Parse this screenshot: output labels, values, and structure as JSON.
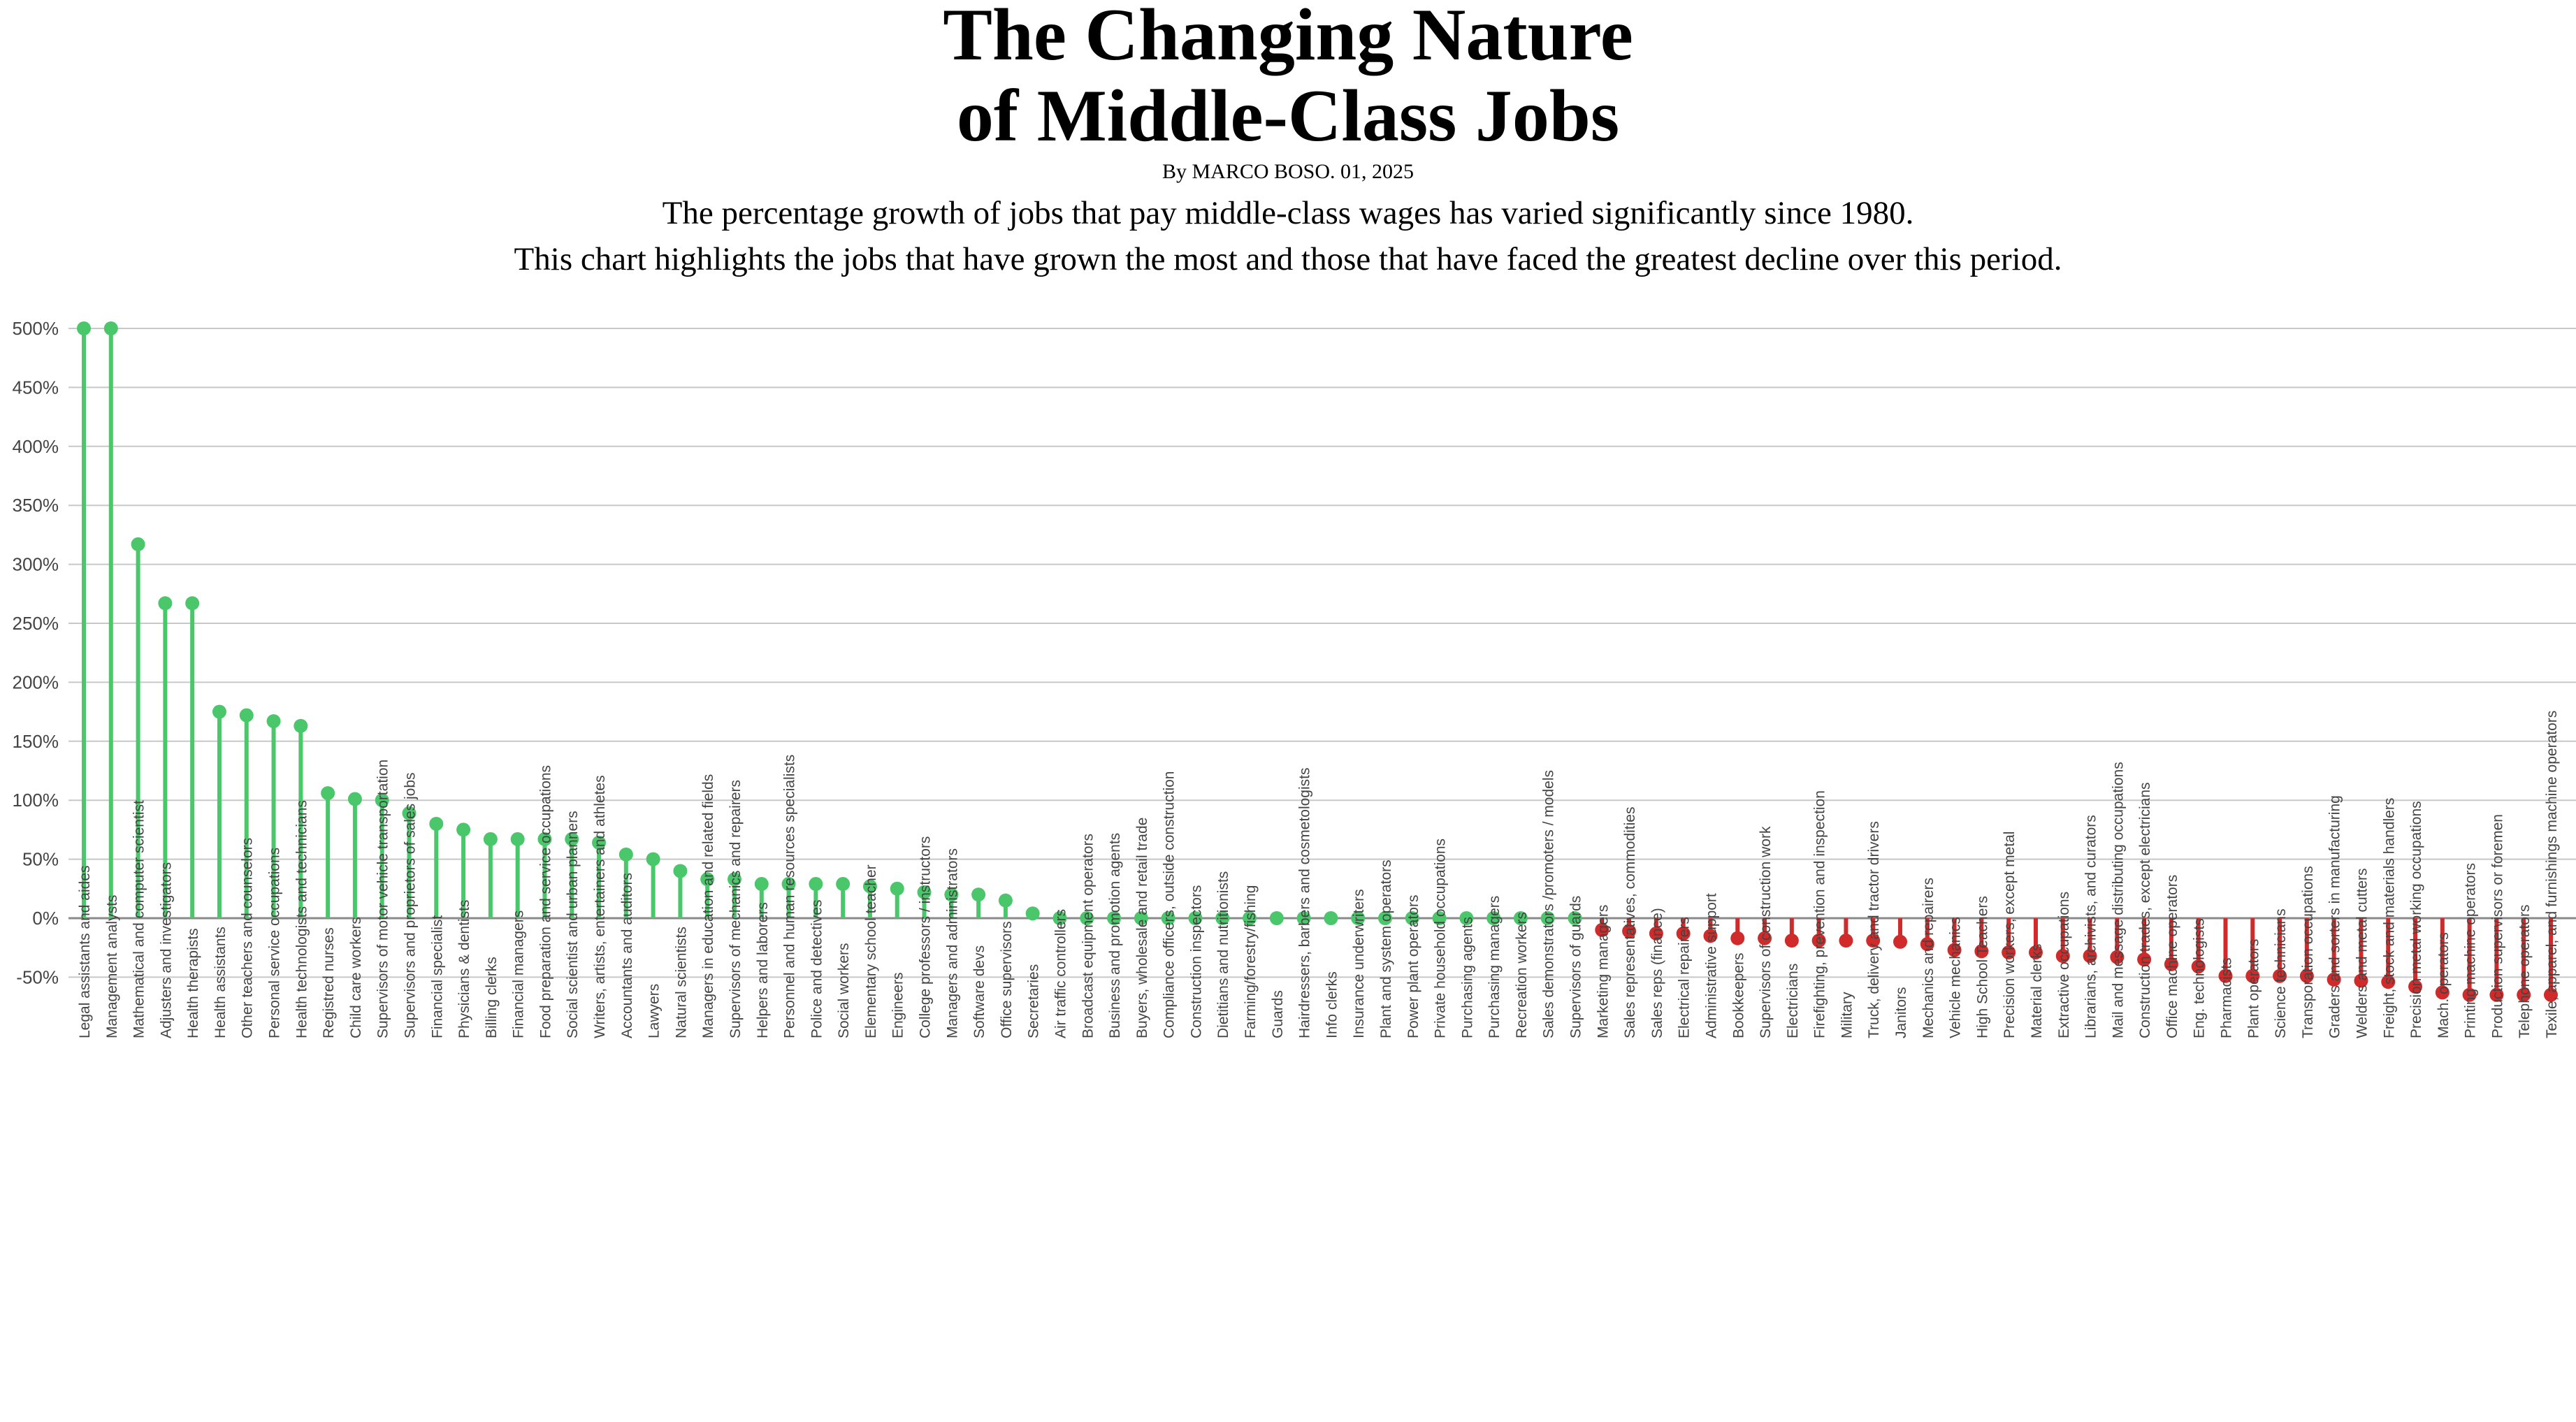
{
  "header": {
    "title_line1": "The Changing Nature",
    "title_line2": "of Middle-Class Jobs",
    "byline": "By MARCO BOSO. 01, 2025",
    "subtitle_line1": "The percentage growth of jobs that pay middle-class wages has varied significantly since 1980.",
    "subtitle_line2": "This chart highlights the jobs that have grown the most and those that have faced the greatest decline over this period."
  },
  "chart_data": {
    "type": "lollipop",
    "ylim": [
      -70,
      510
    ],
    "yticks": [
      -50,
      0,
      50,
      100,
      150,
      200,
      250,
      300,
      350,
      400,
      450,
      500
    ],
    "ytick_suffix": "%",
    "grid": true,
    "colors": {
      "positive": "#4ac76a",
      "negative": "#d02a2a",
      "grid": "#c8c8c8",
      "zero": "#8a8a8a",
      "text": "#444444"
    },
    "categories": [
      "Legal assistants and aides",
      "Management analysts",
      "Mathematical and computer scientist",
      "Adjusters and investigators",
      "Health therapists",
      "Health assistants",
      "Other teachers and counselors",
      "Personal service occupations",
      "Health technologists and technicians",
      "Registred nurses",
      "Child care workers",
      "Supervisors of motor vehicle transportation",
      "Supervisors and proprietors of sales jobs",
      "Financial specialist",
      "Physicians & dentists",
      "Billing clerks",
      "Financial managers",
      "Food preparation and service occupations",
      "Social scientist and urban planners",
      "Writers, artists, entertainers and athletes",
      "Accountants and auditors",
      "Lawyers",
      "Natural scientists",
      "Managers in education and related fields",
      "Supervisors of mechanics and repairers",
      "Helpers and laborers",
      "Personnel and human resources specialists",
      "Police and detectives",
      "Social workers",
      "Elementary school teacher",
      "Engineers",
      "College professors / instructors",
      "Managers and administrators",
      "Software devs",
      "Office supervisors",
      "Secretaries",
      "Air traffic controllers",
      "Broadcast equipment operators",
      "Business and promotion agents",
      "Buyers, wholesale and retail trade",
      "Compliance officers, outside construction",
      "Construction inspectors",
      "Dietitians and nutritionists",
      "Farming/forestry/fishing",
      "Guards",
      "Hairdressers, barbers and cosmetologists",
      "Info clerks",
      "Insurance underwriters",
      "Plant and system operators",
      "Power plant operators",
      "Private household occupations",
      "Purchasing agents",
      "Purchasing managers",
      "Recreation workers",
      "Sales demonstrators /promoters / models",
      "Supervisors of guards",
      "Marketing managers",
      "Sales representatives, commodities",
      "Sales reps (finance)",
      "Electrical repairers",
      "Administrative support",
      "Bookkeepers",
      "Supervisors of construction work",
      "Electricians",
      "Firefighting, prevention and inspection",
      "Military",
      "Truck, delivery and tractor drivers",
      "Janitors",
      "Mechanics and repairers",
      "Vehicle mechanics",
      "High School Teachers",
      "Precision workers, except metal",
      "Material clerks",
      "Extractive occupations",
      "Librarians, archivists, and curators",
      "Mail and message distributing occupations",
      "Construction trades, except electricians",
      "Office machine operators",
      "Eng. technologists",
      "Pharmacists",
      "Plant operators",
      "Science technicians",
      "Transporation occupations",
      "Graders and sorters in manufacturing",
      "Welders and metal cutters",
      "Freight, stock and materials handlers",
      "Precision metal working occupations",
      "Mach. operators",
      "Printing machine operators",
      "Production supervisors or foremen",
      "Telephone operators",
      "Texile, apparel, and furnishings machine operators"
    ],
    "values": [
      500,
      500,
      317,
      267,
      267,
      175,
      172,
      167,
      163,
      106,
      101,
      100,
      89,
      80,
      75,
      67,
      67,
      67,
      67,
      64,
      54,
      50,
      40,
      33,
      33,
      29,
      29,
      29,
      29,
      27,
      25,
      22,
      20,
      20,
      15,
      4,
      0,
      0,
      0,
      0,
      0,
      0,
      0,
      0,
      0,
      0,
      0,
      0,
      0,
      0,
      0,
      0,
      0,
      0,
      0,
      0,
      -10,
      -11,
      -13,
      -13,
      -15,
      -17,
      -17,
      -19,
      -19,
      -19,
      -19,
      -20,
      -22,
      -27,
      -28,
      -29,
      -29,
      -32,
      -32,
      -33,
      -35,
      -39,
      -41,
      -49,
      -49,
      -49,
      -49,
      -52,
      -53,
      -54,
      -58,
      -63,
      -65,
      -65,
      -65,
      -65
    ]
  }
}
